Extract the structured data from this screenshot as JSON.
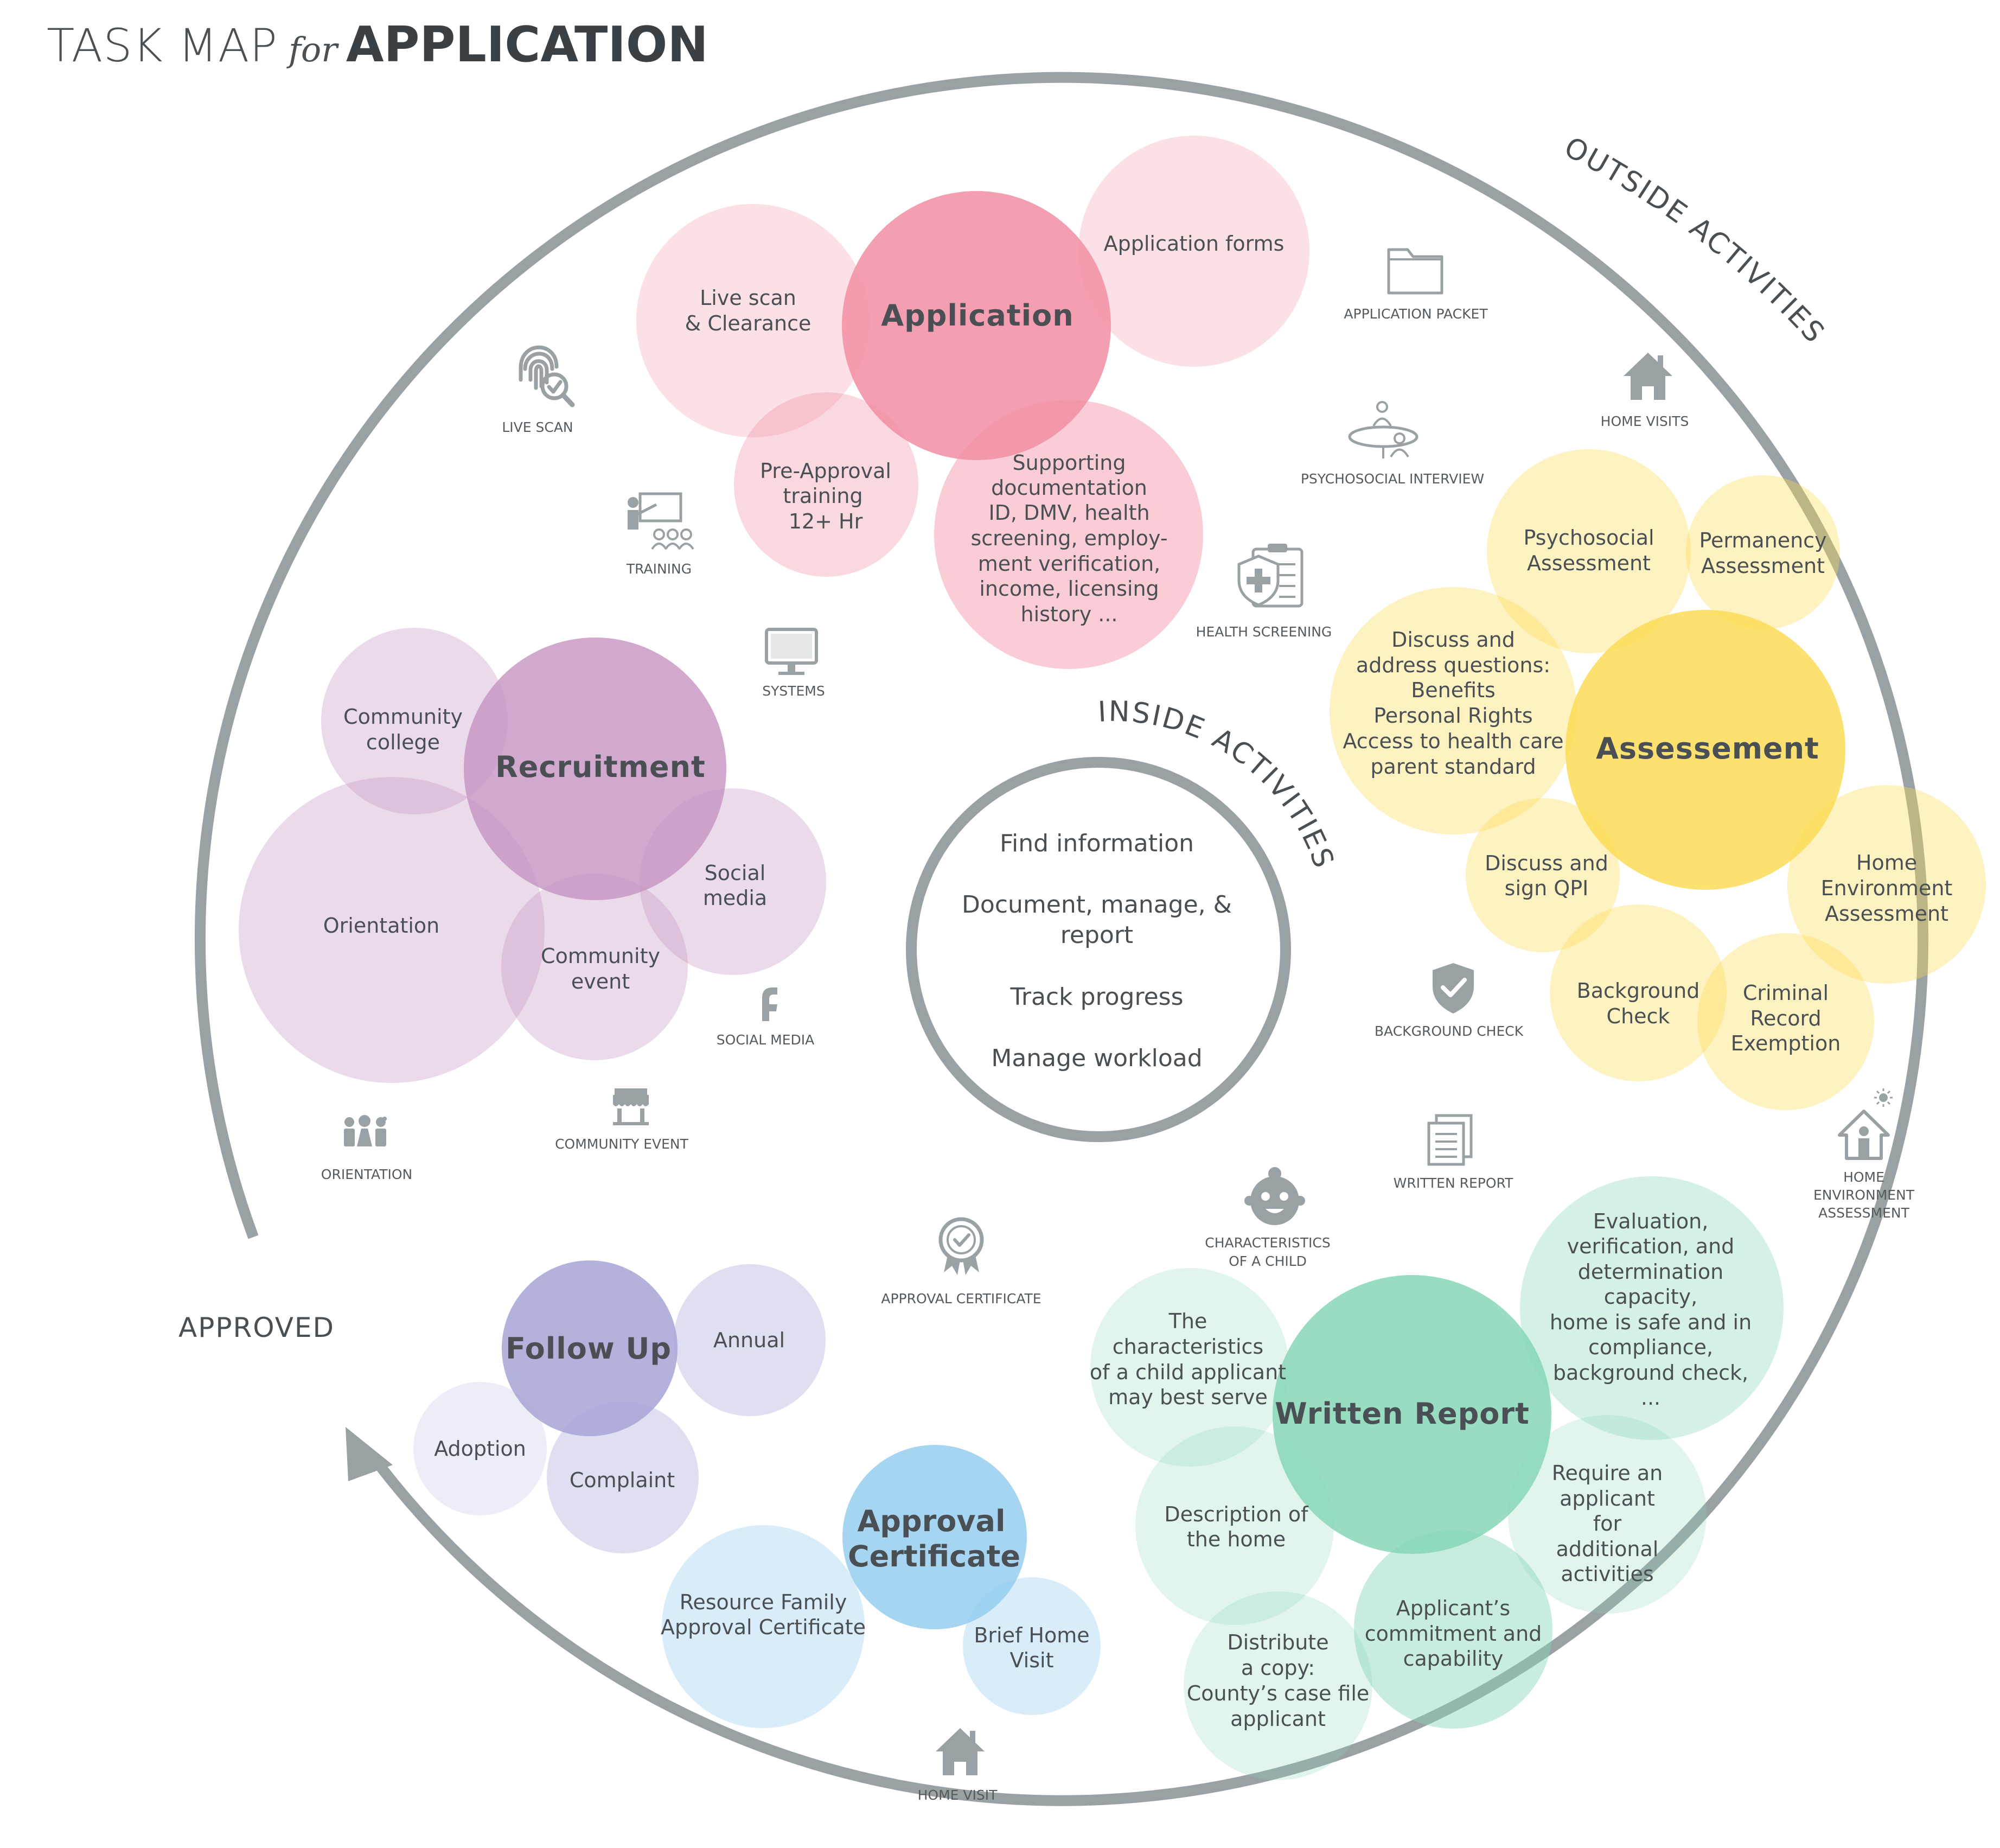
{
  "title": {
    "part1": "TASK MAP",
    "part2": "for",
    "part3": "APPLICATION"
  },
  "outer_label": "OUTSIDE ACTIVITIES",
  "inner_label": "INSIDE ACTIVITIES",
  "approved_label": "APPROVED",
  "inside": [
    "Find information",
    "Document, manage, &",
    "report",
    "Track progress",
    "Manage workload"
  ],
  "colors": {
    "application": "#f28ea3",
    "recruitment": "#c694c2",
    "assessment": "#fbd94e",
    "written_report": "#86d6b6",
    "approval": "#8fcbed",
    "follow_up": "#a6a4d6",
    "ring": "#9aa1a5"
  },
  "clusters": {
    "application": {
      "main": "Application",
      "live_scan": [
        "Live scan",
        "& Clearance"
      ],
      "forms": "Application forms",
      "pre_approval": [
        "Pre-Approval",
        "training",
        "12+ Hr"
      ],
      "supporting": [
        "Supporting",
        "documentation",
        "ID, DMV, health",
        "screening, employ-",
        "ment verification,",
        "income, licensing",
        "history ..."
      ]
    },
    "recruitment": {
      "main": "Recruitment",
      "community_college": [
        "Community",
        "college"
      ],
      "orientation": "Orientation",
      "community_event": [
        "Community",
        "event"
      ],
      "social_media": [
        "Social",
        "media"
      ]
    },
    "assessment": {
      "main": "Assessement",
      "psychosocial": [
        "Psychosocial",
        "Assessment"
      ],
      "permanency": [
        "Permanency",
        "Assessment"
      ],
      "discuss": [
        "Discuss and",
        "address questions:",
        "Benefits",
        "Personal Rights",
        "Access to health care",
        "parent standard"
      ],
      "qpi": [
        "Discuss and",
        "sign QPI"
      ],
      "home_env": [
        "Home",
        "Environment",
        "Assessment"
      ],
      "background": [
        "Background",
        "Check"
      ],
      "criminal": [
        "Criminal",
        "Record",
        "Exemption"
      ]
    },
    "written_report": {
      "main": "Written Report",
      "characteristics": [
        "The",
        "characteristics",
        "of a child applicant",
        "may best serve"
      ],
      "evaluation": [
        "Evaluation,",
        "verification, and",
        "determination",
        "capacity,",
        "home is safe and in",
        "compliance,",
        "background check,",
        "..."
      ],
      "description": [
        "Description of",
        "the home"
      ],
      "require": [
        "Require an",
        "applicant",
        "for",
        "additional",
        "activities"
      ],
      "distribute": [
        "Distribute",
        "a copy:",
        "County’s case file",
        "applicant"
      ],
      "commitment": [
        "Applicant’s",
        "commitment and",
        "capability"
      ]
    },
    "approval": {
      "main": [
        "Approval",
        "Certificate"
      ],
      "resource": [
        "Resource Family",
        "Approval Certificate"
      ],
      "brief": [
        "Brief Home",
        "Visit"
      ]
    },
    "follow_up": {
      "main": "Follow Up",
      "annual": "Annual",
      "adoption": "Adoption",
      "complaint": "Complaint"
    }
  },
  "icon_labels": {
    "live_scan": "LIVE SCAN",
    "training": "TRAINING",
    "systems": "SYSTEMS",
    "application_packet": "APPLICATION PACKET",
    "psychosocial_interview": "PSYCHOSOCIAL INTERVIEW",
    "health_screening": "HEALTH SCREENING",
    "home_visits": "HOME VISITS",
    "social_media": "SOCIAL MEDIA",
    "community_event": "COMMUNITY EVENT",
    "orientation": "ORIENTATION",
    "background_check": "BACKGROUND CHECK",
    "written_report": "WRITTEN REPORT",
    "characteristics": [
      "CHARACTERISTICS",
      "OF A CHILD"
    ],
    "home_environment": [
      "HOME",
      "ENVIRONMENT",
      "ASSESSMENT"
    ],
    "approval_certificate": "APPROVAL CERTIFICATE",
    "home_visit": "HOME VISIT"
  }
}
